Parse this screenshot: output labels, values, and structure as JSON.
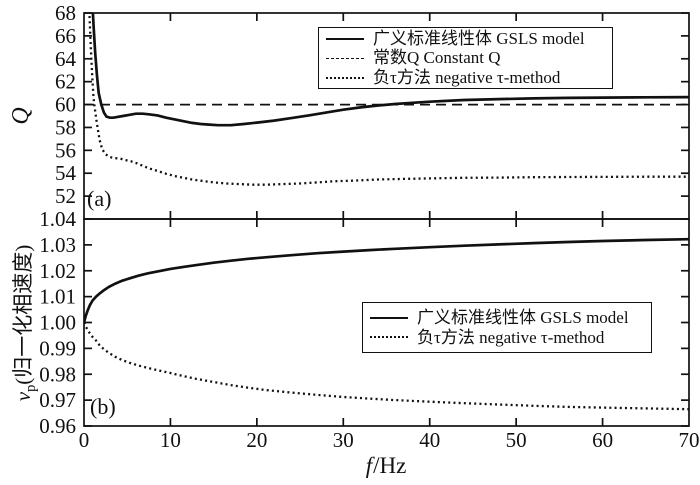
{
  "figure": {
    "background": "#ffffff",
    "ink": "#111111"
  },
  "labels": {
    "x_axis": {
      "symbol": "f",
      "unit": "/Hz"
    },
    "y_axis_b": {
      "symbol": "v",
      "sub": "p",
      "rest": "(归一化相速度)"
    }
  },
  "chart_data": [
    {
      "id": "panel-a",
      "type": "line",
      "panel_tag": "(a)",
      "title": "",
      "ylabel": "Q",
      "xlabel": "",
      "xlim": [
        0,
        70
      ],
      "xticks": [
        0,
        10,
        20,
        30,
        40,
        50,
        60,
        70
      ],
      "ylim": [
        50,
        68
      ],
      "yticks": [
        52,
        54,
        56,
        58,
        60,
        62,
        64,
        66,
        68
      ],
      "ytick_labels": [
        "52",
        "54",
        "56",
        "58",
        "60",
        "62",
        "64",
        "66",
        "68"
      ],
      "grid": false,
      "legend_position": "upper right",
      "series": [
        {
          "name": "广义标准线性体 GSLS model",
          "style": "solid",
          "x": [
            0.9,
            1.0,
            1.1,
            1.3,
            1.5,
            1.7,
            2.0,
            2.3,
            2.6,
            3.0,
            3.4,
            3.8,
            4.5,
            5.2,
            6.0,
            6.8,
            7.5,
            8.5,
            9.5,
            10.5,
            11.5,
            12.5,
            13.5,
            14.5,
            15.5,
            17,
            18.5,
            20,
            22,
            24,
            26,
            28,
            30,
            32,
            34,
            36,
            38,
            40,
            44,
            48,
            52,
            56,
            60,
            65,
            70
          ],
          "y": [
            70,
            68.5,
            67,
            64.5,
            62.5,
            61,
            60,
            59.3,
            58.95,
            58.85,
            58.85,
            58.9,
            59.0,
            59.1,
            59.2,
            59.2,
            59.15,
            59.05,
            58.85,
            58.7,
            58.55,
            58.4,
            58.3,
            58.25,
            58.2,
            58.2,
            58.3,
            58.42,
            58.6,
            58.82,
            59.05,
            59.3,
            59.55,
            59.75,
            59.92,
            60.05,
            60.15,
            60.25,
            60.4,
            60.48,
            60.54,
            60.58,
            60.61,
            60.63,
            60.65
          ]
        },
        {
          "name": "常数Q Constant Q",
          "style": "dashed",
          "x": [
            0,
            70
          ],
          "y": [
            60,
            60
          ]
        },
        {
          "name": "负τ方法 negative τ-method",
          "style": "dotted",
          "x": [
            0.55,
            0.65,
            0.8,
            0.95,
            1.1,
            1.3,
            1.5,
            1.8,
            2.1,
            2.5,
            2.9,
            3.3,
            3.8,
            4.3,
            4.8,
            5.4,
            6.0,
            6.8,
            7.6,
            8.5,
            9.5,
            10.5,
            11.5,
            12.5,
            13.5,
            15,
            16.5,
            18,
            19.5,
            21,
            23,
            25,
            27,
            29,
            31,
            34,
            37,
            40,
            44,
            48,
            52,
            56,
            60,
            65,
            70
          ],
          "y": [
            70,
            67.5,
            64.8,
            62.5,
            60.6,
            59.4,
            58.3,
            56.9,
            56.1,
            55.65,
            55.45,
            55.35,
            55.3,
            55.25,
            55.15,
            55.05,
            54.9,
            54.65,
            54.4,
            54.2,
            53.95,
            53.75,
            53.6,
            53.45,
            53.35,
            53.2,
            53.1,
            53.05,
            53.0,
            53.0,
            53.05,
            53.1,
            53.2,
            53.3,
            53.35,
            53.45,
            53.5,
            53.55,
            53.6,
            53.62,
            53.65,
            53.67,
            53.68,
            53.7,
            53.7
          ]
        }
      ]
    },
    {
      "id": "panel-b",
      "type": "line",
      "panel_tag": "(b)",
      "title": "",
      "ylabel": "vp(归一化相速度)",
      "xlabel": "f/Hz",
      "xlim": [
        0,
        70
      ],
      "xticks": [
        0,
        10,
        20,
        30,
        40,
        50,
        60,
        70
      ],
      "ylim": [
        0.96,
        1.04
      ],
      "yticks": [
        0.96,
        0.97,
        0.98,
        0.99,
        1.0,
        1.01,
        1.02,
        1.03,
        1.04
      ],
      "ytick_labels": [
        "0.96",
        "0.97",
        "0.98",
        "0.99",
        "1.00",
        "1.01",
        "1.02",
        "1.03",
        "1.04"
      ],
      "grid": false,
      "legend_position": "center right",
      "series": [
        {
          "name": "广义标准线性体 GSLS model",
          "style": "solid",
          "x": [
            0,
            0.2,
            0.4,
            0.7,
            1.0,
            1.4,
            1.8,
            2.3,
            2.9,
            3.6,
            4.4,
            5.3,
            6.3,
            7.4,
            8.6,
            10,
            11.5,
            13,
            15,
            17,
            19,
            21,
            24,
            27,
            30,
            33,
            36,
            40,
            44,
            48,
            52,
            56,
            60,
            65,
            70
          ],
          "y": [
            1.0,
            1.0025,
            1.0045,
            1.0068,
            1.0085,
            1.01,
            1.0112,
            1.0125,
            1.0138,
            1.015,
            1.0161,
            1.0171,
            1.0181,
            1.019,
            1.0198,
            1.0207,
            1.0215,
            1.0222,
            1.0231,
            1.0239,
            1.0246,
            1.0252,
            1.026,
            1.0268,
            1.0274,
            1.028,
            1.0285,
            1.0291,
            1.0297,
            1.0302,
            1.0307,
            1.0311,
            1.0315,
            1.0319,
            1.0322
          ]
        },
        {
          "name": "负τ方法 negative τ-method",
          "style": "dotted",
          "x": [
            0,
            0.2,
            0.4,
            0.7,
            1.0,
            1.4,
            1.8,
            2.3,
            2.9,
            3.6,
            4.4,
            5.3,
            6.3,
            7.4,
            8.6,
            10,
            11.5,
            13,
            15,
            17,
            19,
            21,
            24,
            27,
            30,
            33,
            36,
            40,
            44,
            48,
            52,
            56,
            60,
            65,
            70
          ],
          "y": [
            1.0,
            0.9985,
            0.9972,
            0.9957,
            0.9944,
            0.993,
            0.9912,
            0.9897,
            0.9882,
            0.9868,
            0.9855,
            0.9844,
            0.9834,
            0.9824,
            0.9815,
            0.9805,
            0.9793,
            0.9782,
            0.977,
            0.9758,
            0.9748,
            0.9739,
            0.9729,
            0.972,
            0.9712,
            0.9706,
            0.97,
            0.9694,
            0.9688,
            0.9683,
            0.9678,
            0.9674,
            0.9671,
            0.9668,
            0.9665
          ]
        }
      ]
    }
  ]
}
